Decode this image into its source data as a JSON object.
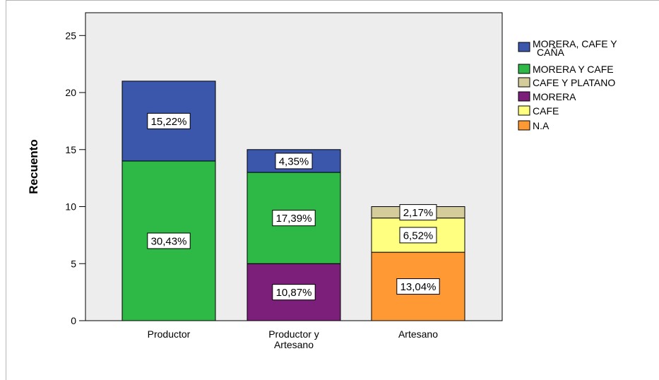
{
  "chart_data": {
    "type": "bar",
    "stacked": true,
    "ylabel": "Recuento",
    "xlabel": "",
    "ylim": [
      0,
      27
    ],
    "yticks": [
      0,
      5,
      10,
      15,
      20,
      25
    ],
    "grid": false,
    "legend_position": "right",
    "categories": [
      "Productor",
      "Productor y Artesano",
      "Artesano"
    ],
    "series": [
      {
        "name": "N.A",
        "color": "#ff9933",
        "values": [
          0,
          0,
          6
        ],
        "labels": [
          "",
          "",
          "13,04%"
        ]
      },
      {
        "name": "CAFE",
        "color": "#ffff80",
        "values": [
          0,
          0,
          3
        ],
        "labels": [
          "",
          "",
          "6,52%"
        ]
      },
      {
        "name": "MORERA",
        "color": "#7b1f7b",
        "values": [
          0,
          5,
          0
        ],
        "labels": [
          "",
          "10,87%",
          ""
        ]
      },
      {
        "name": "CAFE Y PLATANO",
        "color": "#d4cc9b",
        "values": [
          0,
          0,
          1
        ],
        "labels": [
          "",
          "",
          "2,17%"
        ]
      },
      {
        "name": "MORERA Y CAFE",
        "color": "#2eb845",
        "values": [
          14,
          8,
          0
        ],
        "labels": [
          "30,43%",
          "17,39%",
          ""
        ]
      },
      {
        "name": "MORERA, CAFE Y CAÑA",
        "color": "#3a57ac",
        "values": [
          7,
          2,
          0
        ],
        "labels": [
          "15,22%",
          "4,35%",
          ""
        ]
      }
    ],
    "legend_order": [
      "MORERA, CAFE Y CAÑA",
      "MORERA Y CAFE",
      "CAFE Y PLATANO",
      "MORERA",
      "CAFE",
      "N.A"
    ]
  }
}
